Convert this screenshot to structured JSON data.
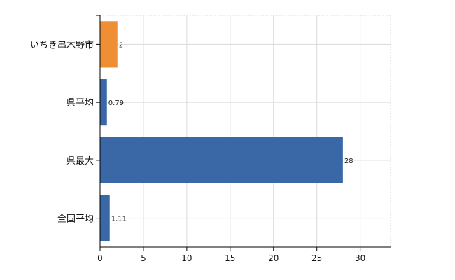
{
  "chart_data": {
    "type": "bar",
    "orientation": "horizontal",
    "categories": [
      "いちき串木野市",
      "県平均",
      "県最大",
      "全国平均"
    ],
    "values": [
      2,
      0.79,
      28,
      1.11
    ],
    "value_labels": [
      "2",
      "0.79",
      "28",
      "1.11"
    ],
    "bar_colors": [
      "#ee8f35",
      "#3a68a6",
      "#3a68a6",
      "#3a68a6"
    ],
    "x_ticks": [
      0,
      5,
      10,
      15,
      20,
      25,
      30
    ],
    "xlim": [
      0,
      33.5
    ],
    "grid": true,
    "title": "",
    "xlabel": "",
    "ylabel": ""
  }
}
